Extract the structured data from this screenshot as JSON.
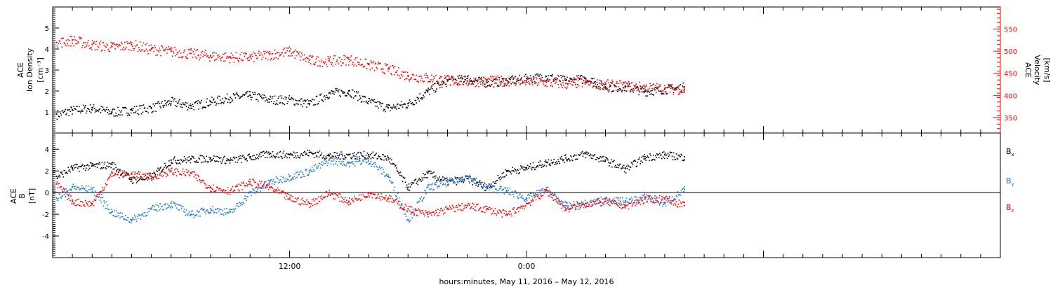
{
  "colors": {
    "black": "#000000",
    "red": "#ff0000",
    "blue": "#1a7ae0"
  },
  "panel1": {
    "left_label_1": "ACE",
    "left_label_2": "Ion Density",
    "left_unit": "[cm⁻³]",
    "right_label_1": "ACE",
    "right_label_2": "Velocity",
    "right_unit": "[km/s]"
  },
  "panel2": {
    "left_label_1": "ACE",
    "left_label_2": "B",
    "left_unit": "[nT]",
    "legend": [
      {
        "name": "B",
        "sub": "x",
        "color": "#000000"
      },
      {
        "name": "B",
        "sub": "y",
        "color": "#1a7ae0"
      },
      {
        "name": "B",
        "sub": "z",
        "color": "#ff0000"
      }
    ]
  },
  "x_axis": {
    "title": "hours:minutes, May 11, 2016 – May 12, 2016",
    "tick_labels": [
      {
        "hour": 12,
        "label": "12:00"
      },
      {
        "hour": 24,
        "label": "0:00"
      }
    ]
  },
  "chart_data": [
    {
      "type": "scatter",
      "title": "",
      "xlabel": "hours:minutes, May 11, 2016 – May 12, 2016",
      "ylabel": "ACE Ion Density [cm⁻³]",
      "y2label": "ACE Velocity [km/s]",
      "xlim": [
        0,
        48
      ],
      "ylim": [
        0,
        6
      ],
      "y2lim": [
        315,
        600
      ],
      "x_ticks_labeled": [
        "12:00",
        "0:00"
      ],
      "y_ticks": [
        1,
        2,
        3,
        4,
        5
      ],
      "y2_ticks": [
        350,
        400,
        450,
        500,
        550
      ],
      "series": [
        {
          "name": "Ion Density",
          "axis": "left",
          "color": "#000000",
          "x": [
            0.2,
            1.0,
            2.0,
            3.0,
            4.0,
            5.0,
            6.0,
            7.0,
            8.0,
            9.0,
            10.0,
            11.0,
            12.0,
            13.0,
            14.0,
            15.0,
            16.0,
            17.0,
            18.0,
            19.0,
            20.0,
            21.0,
            22.0,
            23.0,
            24.0,
            25.0,
            26.0,
            27.0,
            28.0,
            29.0,
            30.0,
            31.0,
            32.0
          ],
          "y": [
            0.9,
            1.1,
            1.2,
            1.0,
            1.1,
            1.2,
            1.5,
            1.3,
            1.5,
            1.7,
            1.8,
            1.6,
            1.6,
            1.4,
            1.9,
            2.0,
            1.5,
            1.2,
            1.4,
            2.0,
            2.5,
            2.6,
            2.4,
            2.5,
            2.6,
            2.7,
            2.5,
            2.6,
            2.2,
            2.2,
            2.0,
            2.1,
            2.2
          ]
        },
        {
          "name": "Velocity",
          "axis": "right",
          "color": "#ff0000",
          "x": [
            0.2,
            1.0,
            2.0,
            3.0,
            4.0,
            5.0,
            6.0,
            7.0,
            8.0,
            9.0,
            10.0,
            11.0,
            12.0,
            13.0,
            14.0,
            15.0,
            16.0,
            17.0,
            18.0,
            19.0,
            20.0,
            21.0,
            22.0,
            23.0,
            24.0,
            25.0,
            26.0,
            27.0,
            28.0,
            29.0,
            30.0,
            31.0,
            32.0
          ],
          "y": [
            520,
            525,
            515,
            510,
            515,
            505,
            500,
            495,
            490,
            487,
            487,
            493,
            500,
            480,
            478,
            482,
            470,
            460,
            445,
            440,
            435,
            433,
            433,
            434,
            433,
            430,
            427,
            431,
            425,
            422,
            419,
            416,
            414
          ]
        }
      ]
    },
    {
      "type": "scatter",
      "title": "",
      "xlabel": "hours:minutes, May 11, 2016 – May 12, 2016",
      "ylabel": "ACE B [nT]",
      "xlim": [
        0,
        48
      ],
      "ylim": [
        -6,
        5.5
      ],
      "y_ticks": [
        -4,
        -2,
        0,
        2,
        4
      ],
      "zero_line": true,
      "legend": "right",
      "series": [
        {
          "name": "Bx",
          "color": "#000000",
          "x": [
            0.2,
            1.0,
            2.0,
            3.0,
            4.0,
            5.0,
            6.0,
            7.0,
            8.0,
            9.0,
            10.0,
            11.0,
            12.0,
            13.0,
            14.0,
            15.0,
            16.0,
            17.0,
            18.0,
            19.0,
            20.0,
            21.0,
            22.0,
            23.0,
            24.0,
            25.0,
            26.0,
            27.0,
            28.0,
            29.0,
            30.0,
            31.0,
            32.0
          ],
          "y": [
            1.5,
            2.3,
            2.5,
            2.6,
            1.2,
            1.5,
            3.0,
            3.1,
            3.2,
            3.0,
            3.3,
            3.6,
            3.5,
            3.7,
            3.4,
            3.5,
            3.5,
            3.2,
            0.5,
            1.8,
            1.0,
            1.3,
            0.5,
            2.0,
            2.3,
            2.8,
            3.2,
            3.6,
            3.0,
            2.2,
            3.3,
            3.5,
            3.3
          ]
        },
        {
          "name": "By",
          "color": "#1a7ae0",
          "x": [
            0.2,
            1.0,
            2.0,
            3.0,
            4.0,
            5.0,
            6.0,
            7.0,
            8.0,
            9.0,
            10.0,
            11.0,
            12.0,
            13.0,
            14.0,
            15.0,
            16.0,
            17.0,
            18.0,
            19.0,
            20.0,
            21.0,
            22.0,
            23.0,
            24.0,
            25.0,
            26.0,
            27.0,
            28.0,
            29.0,
            30.0,
            31.0,
            32.0
          ],
          "y": [
            -0.5,
            0.5,
            0.3,
            -1.8,
            -2.5,
            -1.5,
            -1.0,
            -2.0,
            -1.5,
            -1.8,
            0.0,
            1.0,
            1.5,
            2.0,
            3.0,
            2.8,
            3.0,
            1.5,
            -2.5,
            0.5,
            1.0,
            1.5,
            0.5,
            0.2,
            -0.5,
            0.3,
            -1.2,
            -1.0,
            -0.6,
            -0.8,
            -0.4,
            -1.0,
            0.3
          ]
        },
        {
          "name": "Bz",
          "color": "#ff0000",
          "x": [
            0.2,
            1.0,
            2.0,
            3.0,
            4.0,
            5.0,
            6.0,
            7.0,
            8.0,
            9.0,
            10.0,
            11.0,
            12.0,
            13.0,
            14.0,
            15.0,
            16.0,
            17.0,
            18.0,
            19.0,
            20.0,
            21.0,
            22.0,
            23.0,
            24.0,
            25.0,
            26.0,
            27.0,
            28.0,
            29.0,
            30.0,
            31.0,
            32.0
          ],
          "y": [
            0.8,
            -0.8,
            -1.0,
            1.8,
            1.7,
            1.5,
            2.0,
            1.8,
            0.5,
            0.2,
            1.0,
            0.5,
            -0.5,
            -1.0,
            0.0,
            -0.8,
            0.0,
            -0.5,
            -1.5,
            -2.0,
            -1.5,
            -1.2,
            -1.5,
            -2.0,
            -1.0,
            0.2,
            -1.5,
            -1.0,
            -0.8,
            -1.2,
            -0.6,
            -0.5,
            -1.2
          ]
        }
      ]
    }
  ]
}
